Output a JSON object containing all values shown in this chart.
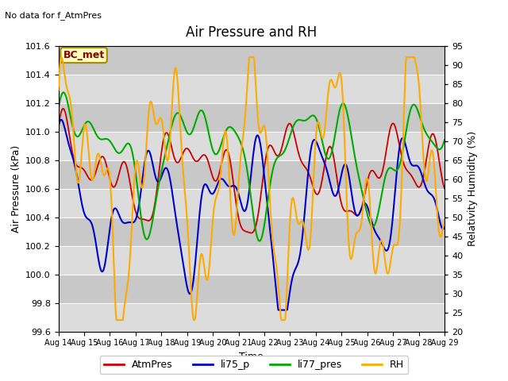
{
  "title": "Air Pressure and RH",
  "subtitle": "No data for f_AtmPres",
  "xlabel": "Time",
  "ylabel_left": "Air Pressure (kPa)",
  "ylabel_right": "Relativity Humidity (%)",
  "annotation": "BC_met",
  "ylim_left": [
    99.6,
    101.6
  ],
  "ylim_right": [
    20,
    95
  ],
  "yticks_left": [
    99.6,
    99.8,
    100.0,
    100.2,
    100.4,
    100.6,
    100.8,
    101.0,
    101.2,
    101.4,
    101.6
  ],
  "yticks_right": [
    20,
    25,
    30,
    35,
    40,
    45,
    50,
    55,
    60,
    65,
    70,
    75,
    80,
    85,
    90,
    95
  ],
  "xtick_labels": [
    "Aug 14",
    "Aug 15",
    "Aug 16",
    "Aug 17",
    "Aug 18",
    "Aug 19",
    "Aug 20",
    "Aug 21",
    "Aug 22",
    "Aug 23",
    "Aug 24",
    "Aug 25",
    "Aug 26",
    "Aug 27",
    "Aug 28",
    "Aug 29"
  ],
  "colors": {
    "AtmPres": "#CC0000",
    "li75_p": "#0000CC",
    "li77_pres": "#00AA00",
    "RH": "#FFAA00"
  },
  "legend_labels": [
    "AtmPres",
    "li75_p",
    "li77_pres",
    "RH"
  ],
  "bg_band_light": "#DCDCDC",
  "bg_band_dark": "#C8C8C8",
  "title_fontsize": 12,
  "subtitle_fontsize": 8,
  "axis_label_fontsize": 9,
  "tick_fontsize": 8,
  "xtick_fontsize": 7,
  "legend_fontsize": 9
}
